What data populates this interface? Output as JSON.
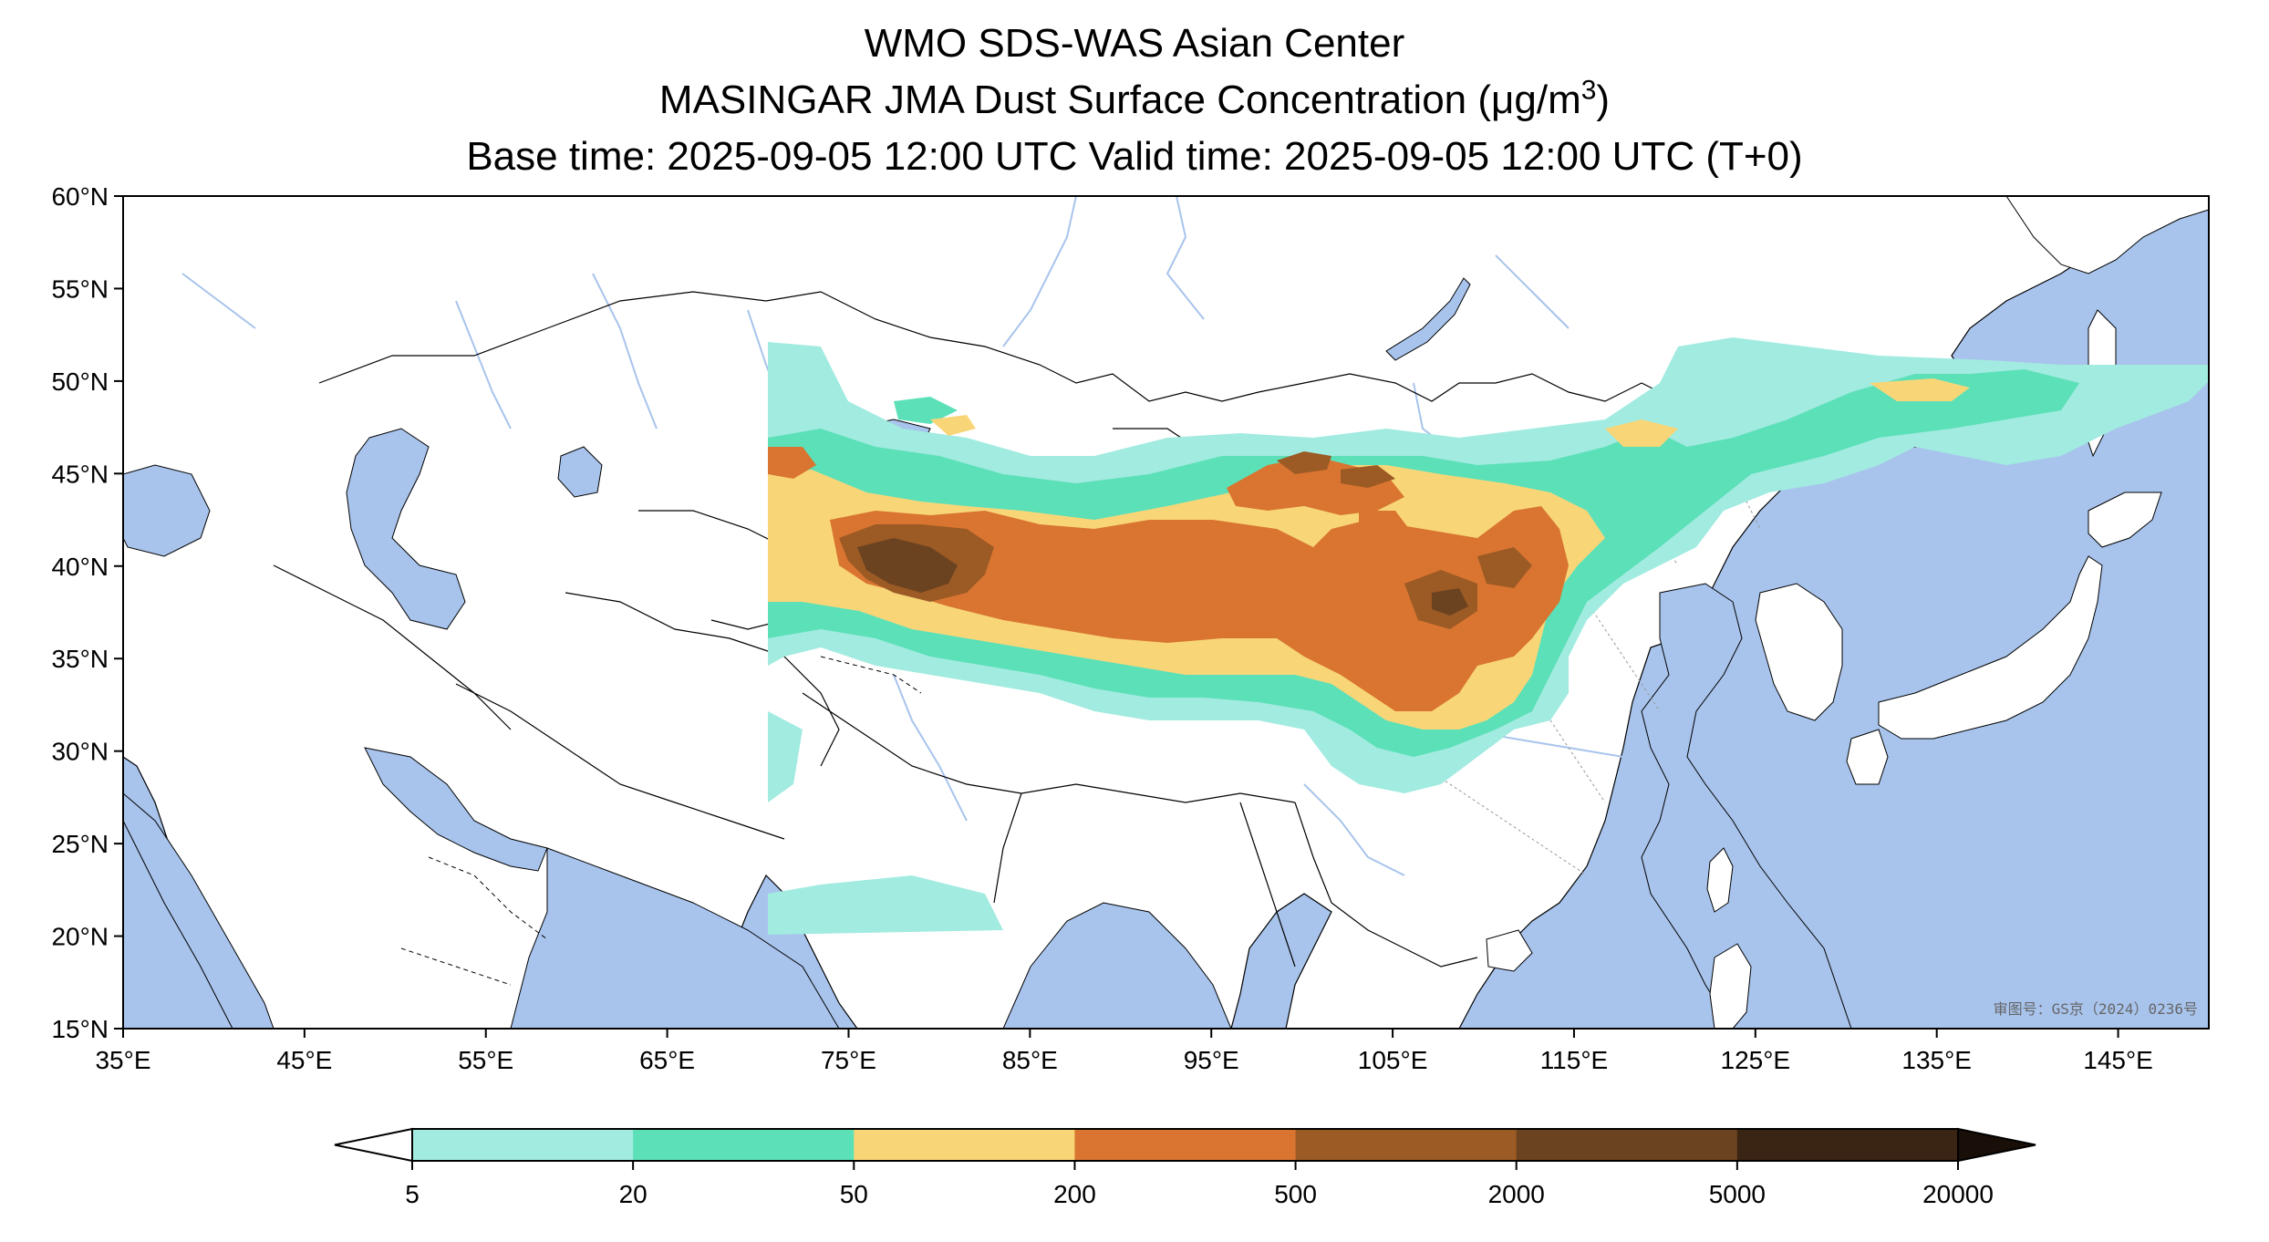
{
  "title": {
    "line1": "WMO SDS-WAS Asian Center",
    "line2_text": "MASINGAR JMA Dust Surface Concentration (μg/m",
    "line2_sup": "3",
    "line2_end": ")",
    "line3": "Base time: 2025-09-05 12:00 UTC Valid time: 2025-09-05 12:00 UTC (T+0)"
  },
  "map": {
    "lon_range": [
      35,
      150
    ],
    "lat_range": [
      15,
      60
    ],
    "x_ticks": [
      "35°E",
      "45°E",
      "55°E",
      "65°E",
      "75°E",
      "85°E",
      "95°E",
      "105°E",
      "115°E",
      "125°E",
      "135°E",
      "145°E"
    ],
    "y_ticks": [
      "60°N",
      "55°N",
      "50°N",
      "45°N",
      "40°N",
      "35°N",
      "30°N",
      "25°N",
      "20°N",
      "15°N"
    ],
    "ocean_color": "#a8c4ec",
    "land_color": "#ffffff",
    "watermark": "审图号：GS京（2024）0236号"
  },
  "colorbar": {
    "levels": [
      "5",
      "20",
      "50",
      "200",
      "500",
      "2000",
      "5000",
      "20000"
    ],
    "colors": [
      "#a2ebe0",
      "#5ce0b8",
      "#f8d678",
      "#d97530",
      "#9c5a25",
      "#6b4320",
      "#3a2414"
    ],
    "extend": "both"
  }
}
